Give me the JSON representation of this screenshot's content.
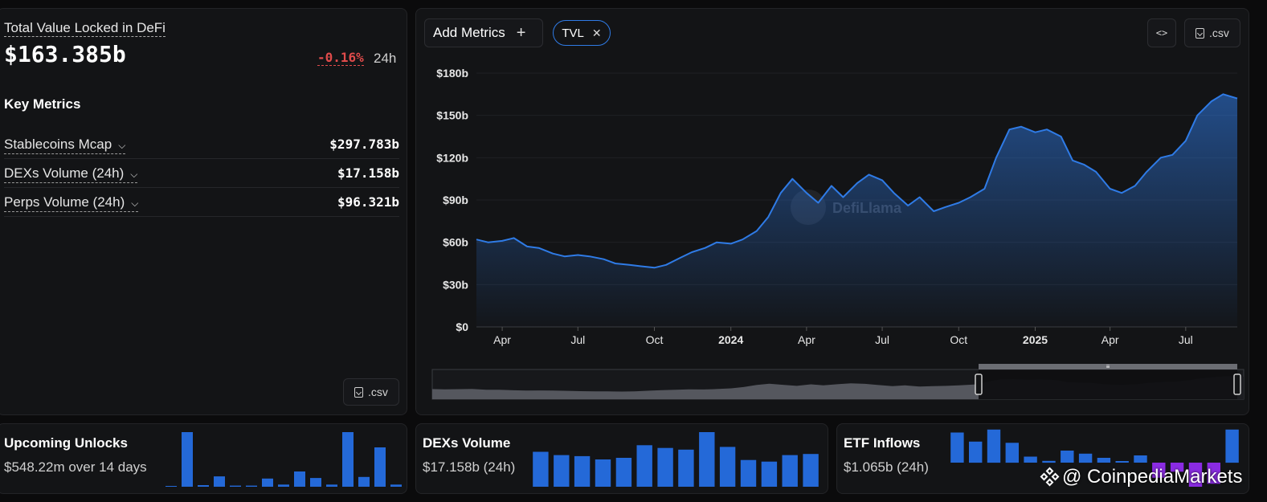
{
  "left": {
    "tvl_title": "Total Value Locked in DeFi",
    "tvl_value": "$163.385b",
    "tvl_change": "-0.16%",
    "tvl_period": "24h",
    "key_metrics_title": "Key Metrics",
    "metrics": [
      {
        "label": "Stablecoins Mcap",
        "value": "$297.783b"
      },
      {
        "label": "DEXs Volume (24h)",
        "value": "$17.158b"
      },
      {
        "label": "Perps Volume (24h)",
        "value": "$96.321b"
      }
    ],
    "csv_label": ".csv"
  },
  "toolbar": {
    "add_metrics_label": "Add Metrics",
    "chip_label": "TVL",
    "embed_label": "<>",
    "csv_label": ".csv"
  },
  "chart_data": {
    "type": "area",
    "series": [
      {
        "name": "TVL",
        "color": "#2f7be6",
        "x": [
          "2023-03-01",
          "2023-03-15",
          "2023-04-01",
          "2023-04-15",
          "2023-05-01",
          "2023-05-15",
          "2023-06-01",
          "2023-06-15",
          "2023-07-01",
          "2023-07-15",
          "2023-08-01",
          "2023-08-15",
          "2023-09-01",
          "2023-09-15",
          "2023-10-01",
          "2023-10-15",
          "2023-11-01",
          "2023-11-15",
          "2023-12-01",
          "2023-12-15",
          "2024-01-01",
          "2024-01-15",
          "2024-02-01",
          "2024-02-15",
          "2024-03-01",
          "2024-03-15",
          "2024-04-01",
          "2024-04-15",
          "2024-05-01",
          "2024-05-15",
          "2024-06-01",
          "2024-06-15",
          "2024-07-01",
          "2024-07-15",
          "2024-08-01",
          "2024-08-15",
          "2024-09-01",
          "2024-09-15",
          "2024-10-01",
          "2024-10-15",
          "2024-11-01",
          "2024-11-15",
          "2024-12-01",
          "2024-12-15",
          "2025-01-01",
          "2025-01-15",
          "2025-02-01",
          "2025-02-15",
          "2025-03-01",
          "2025-03-15",
          "2025-04-01",
          "2025-04-15",
          "2025-05-01",
          "2025-05-15",
          "2025-06-01",
          "2025-06-15",
          "2025-07-01",
          "2025-07-15",
          "2025-08-01",
          "2025-08-15",
          "2025-09-01"
        ],
        "values": [
          62,
          60,
          61,
          63,
          57,
          56,
          52,
          50,
          51,
          50,
          48,
          45,
          44,
          43,
          42,
          44,
          49,
          53,
          56,
          60,
          59,
          62,
          68,
          78,
          95,
          105,
          95,
          88,
          100,
          92,
          102,
          108,
          104,
          95,
          86,
          92,
          82,
          85,
          88,
          92,
          98,
          120,
          140,
          142,
          138,
          140,
          135,
          118,
          115,
          110,
          98,
          95,
          100,
          110,
          120,
          122,
          132,
          150,
          160,
          165,
          162
        ]
      }
    ],
    "y_ticks": [
      "$0",
      "$30b",
      "$60b",
      "$90b",
      "$120b",
      "$150b",
      "$180b"
    ],
    "ylim": [
      0,
      180
    ],
    "x_ticks": [
      "Apr",
      "Jul",
      "Oct",
      "2024",
      "Apr",
      "Jul",
      "Oct",
      "2025",
      "Apr",
      "Jul"
    ],
    "x_tick_dates": [
      "2023-04-01",
      "2023-07-01",
      "2023-10-01",
      "2024-01-01",
      "2024-04-01",
      "2024-07-01",
      "2024-10-01",
      "2025-01-01",
      "2025-04-01",
      "2025-07-01"
    ],
    "x_tick_bold": [
      false,
      false,
      false,
      true,
      false,
      false,
      false,
      true,
      false,
      false
    ],
    "watermark": "DefiLlama",
    "grid": "horizontal"
  },
  "unlocks": {
    "title": "Upcoming Unlocks",
    "subtitle": "$548.22m over 14 days",
    "bars": [
      1,
      100,
      3,
      19,
      2,
      2,
      15,
      4,
      28,
      16,
      4,
      100,
      18,
      72,
      4
    ]
  },
  "dexs": {
    "title": "DEXs Volume",
    "subtitle": "$17.158b (24h)",
    "bars": [
      64,
      58,
      56,
      50,
      53,
      76,
      71,
      68,
      100,
      73,
      49,
      46,
      58,
      60
    ]
  },
  "etf": {
    "title": "ETF Inflows",
    "subtitle": "$1.065b (24h)",
    "bars": [
      50,
      35,
      55,
      33,
      10,
      3,
      20,
      15,
      8,
      0,
      12,
      -25,
      -15,
      -40,
      -35,
      55
    ],
    "colors": {
      "positive": "#2469d8",
      "negative": "#8a2be2"
    }
  },
  "watermark_text": "@ CoinpediaMarkets"
}
